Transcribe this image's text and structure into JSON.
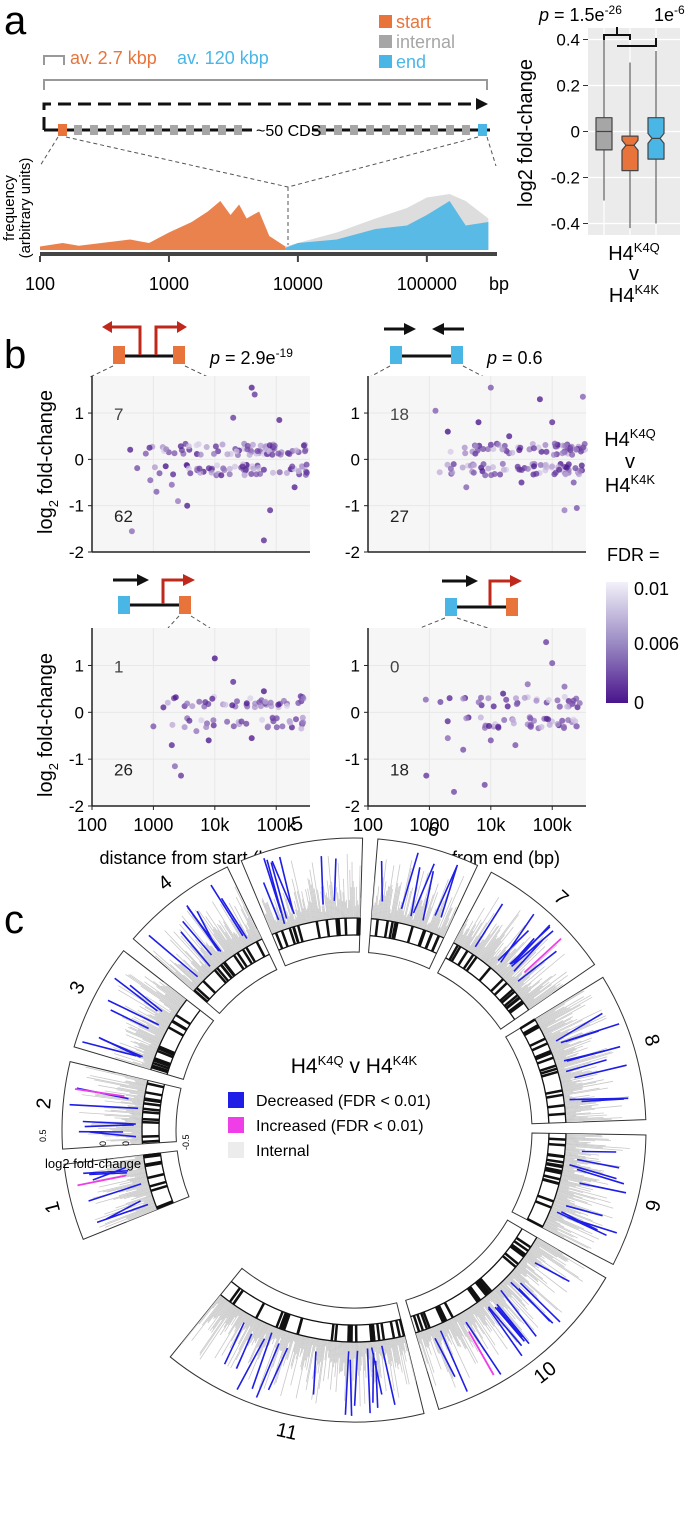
{
  "colors": {
    "start": "#e8743b",
    "internal": "#a6a6a6",
    "end": "#4ab6e6",
    "red": "#c0281c",
    "decreased": "#1f1ee6",
    "increased": "#ef3ee8",
    "fdr_low": "#4a148c",
    "fdr_high": "#f3f1f9"
  },
  "panels": {
    "a": "a",
    "b": "b",
    "c": "c"
  },
  "panel_a": {
    "legend": [
      "start",
      "internal",
      "end"
    ],
    "avg_start": "av. 2.7 kbp",
    "avg_end": "av. 120 kbp",
    "cds_label": "~50 CDS",
    "ylabel_1": "frequency",
    "ylabel_2": "(arbitrary units)",
    "x_ticks": [
      "100",
      "1000",
      "10000",
      "100000"
    ],
    "x_unit": "bp",
    "box": {
      "p1_prefix": "p = 1.5e",
      "p1_exp": "-26",
      "p2_prefix": "1e",
      "p2_exp": "-6",
      "ylabel": "log2 fold-change",
      "y_ticks": [
        "0.4",
        "0.2",
        "0",
        "-0.2",
        "-0.4"
      ],
      "x_line1": "H4",
      "x_line1_sup": "K4Q",
      "x_line2": "v",
      "x_line3": "H4",
      "x_line3_sup": "K4K"
    }
  },
  "panel_b": {
    "ylabel": "log2 fold-change",
    "comparison_line1": "H4",
    "comparison_line1_sup": "K4Q",
    "comparison_line2": "v",
    "comparison_line3": "H4",
    "comparison_line3_sup": "K4K",
    "p_top_left": "p = 2.9e",
    "p_top_left_exp": "-19",
    "p_top_right": "p = 0.6",
    "y_ticks": [
      "1",
      "0",
      "-1",
      "-2"
    ],
    "x_ticks": [
      "100",
      "1000",
      "10k",
      "100k"
    ],
    "xlabel_left": "distance from start (bp)",
    "xlabel_right": "distance from end (bp)",
    "counts": {
      "tl_up": "7",
      "tl_down": "62",
      "tr_up": "18",
      "tr_down": "27",
      "bl_up": "1",
      "bl_down": "26",
      "br_up": "0",
      "br_down": "18"
    },
    "fdr_title": "FDR =",
    "fdr_ticks": [
      "0.01",
      "0.006",
      "0"
    ]
  },
  "panel_c": {
    "title_prefix": "H4",
    "title_sup1": "K4Q",
    "title_mid": " v H4",
    "title_sup2": "K4K",
    "legend": [
      "Decreased (FDR < 0.01)",
      "Increased (FDR < 0.01)",
      "Internal"
    ],
    "axis_label": "log2 fold-change",
    "axis_ticks": [
      "0.5",
      "0",
      "0",
      "-0.5"
    ],
    "chromosomes": [
      "1",
      "2",
      "3",
      "4",
      "5",
      "6",
      "7",
      "8",
      "9",
      "10",
      "11"
    ]
  },
  "chart_data": [
    {
      "type": "area",
      "panel": "a",
      "title": "",
      "xlabel": "bp",
      "ylabel": "frequency (arbitrary units)",
      "x_scale": "log",
      "xlim": [
        100,
        350000
      ],
      "x_ticks": [
        100,
        1000,
        10000,
        100000
      ],
      "series": [
        {
          "name": "start",
          "x": [
            100,
            150,
            200,
            300,
            500,
            700,
            1000,
            1500,
            2000,
            2500,
            3000,
            3500,
            4000,
            5000,
            6000,
            8000
          ],
          "values": [
            0.05,
            0.1,
            0.06,
            0.1,
            0.15,
            0.1,
            0.25,
            0.4,
            0.55,
            0.7,
            0.5,
            0.65,
            0.45,
            0.55,
            0.2,
            0.05
          ]
        },
        {
          "name": "internal",
          "x": [
            8000,
            10000,
            20000,
            40000,
            70000,
            100000,
            150000,
            200000,
            300000
          ],
          "values": [
            0.05,
            0.1,
            0.25,
            0.45,
            0.6,
            0.75,
            0.8,
            0.7,
            0.45
          ]
        },
        {
          "name": "end",
          "x": [
            8000,
            10000,
            20000,
            40000,
            70000,
            100000,
            150000,
            200000,
            300000
          ],
          "values": [
            0.03,
            0.1,
            0.15,
            0.3,
            0.35,
            0.5,
            0.7,
            0.35,
            0.4
          ]
        }
      ]
    },
    {
      "type": "box",
      "panel": "a",
      "title": "",
      "ylabel": "log2 fold-change",
      "ylim": [
        -0.45,
        0.45
      ],
      "categories": [
        "start",
        "internal",
        "end"
      ],
      "boxes": [
        {
          "name": "internal",
          "q1": -0.08,
          "median": 0.0,
          "q3": 0.06,
          "whisker_low": -0.3,
          "whisker_high": 0.4
        },
        {
          "name": "start",
          "q1": -0.17,
          "median": -0.06,
          "q3": -0.02,
          "whisker_low": -0.42,
          "whisker_high": 0.3
        },
        {
          "name": "end",
          "q1": -0.12,
          "median": -0.03,
          "q3": 0.06,
          "whisker_low": -0.4,
          "whisker_high": 0.35
        }
      ]
    },
    {
      "type": "scatter",
      "panel": "b",
      "facets": [
        {
          "name": "start-divergent",
          "xlabel": "",
          "p": "2.9e-19",
          "up": 7,
          "down": 62,
          "x_range_log10": [
            2.6,
            5.55
          ],
          "points": [
            [
              2.65,
              -1.55
            ],
            [
              2.95,
              -0.45
            ],
            [
              3.05,
              -0.7
            ],
            [
              3.1,
              -0.3
            ],
            [
              3.2,
              -0.15
            ],
            [
              3.3,
              -0.55
            ],
            [
              3.4,
              -0.9
            ],
            [
              3.55,
              -1.0
            ],
            [
              3.6,
              -0.3
            ],
            [
              3.75,
              -0.2
            ],
            [
              4.3,
              0.9
            ],
            [
              4.6,
              1.55
            ],
            [
              4.65,
              1.4
            ],
            [
              4.8,
              -1.75
            ],
            [
              4.9,
              -1.1
            ],
            [
              5.05,
              0.85
            ],
            [
              5.3,
              -0.6
            ],
            [
              5.45,
              0.3
            ]
          ]
        },
        {
          "name": "end-convergent",
          "xlabel": "",
          "p": "0.6",
          "up": 18,
          "down": 27,
          "x_range_log10": [
            3.0,
            5.55
          ],
          "points": [
            [
              3.1,
              1.05
            ],
            [
              3.3,
              0.6
            ],
            [
              3.35,
              -0.2
            ],
            [
              3.6,
              -0.6
            ],
            [
              3.8,
              0.8
            ],
            [
              4.0,
              1.55
            ],
            [
              4.3,
              0.5
            ],
            [
              4.5,
              -0.5
            ],
            [
              4.8,
              1.3
            ],
            [
              5.0,
              0.8
            ],
            [
              5.2,
              -1.1
            ],
            [
              5.35,
              -0.5
            ],
            [
              5.4,
              -1.05
            ],
            [
              5.5,
              1.35
            ]
          ]
        },
        {
          "name": "start-tandem",
          "xlabel": "distance from start (bp)",
          "up": 1,
          "down": 26,
          "x_range_log10": [
            3.0,
            5.45
          ],
          "points": [
            [
              3.0,
              -0.3
            ],
            [
              3.3,
              -0.7
            ],
            [
              3.35,
              -1.15
            ],
            [
              3.45,
              -1.35
            ],
            [
              3.7,
              -0.4
            ],
            [
              3.9,
              -0.6
            ],
            [
              4.0,
              1.15
            ],
            [
              4.2,
              -0.2
            ],
            [
              4.3,
              0.65
            ],
            [
              4.6,
              -0.55
            ],
            [
              4.8,
              0.45
            ],
            [
              5.1,
              -0.3
            ]
          ]
        },
        {
          "name": "end-tandem",
          "xlabel": "distance from end (bp)",
          "up": 0,
          "down": 18,
          "x_range_log10": [
            2.9,
            5.45
          ],
          "points": [
            [
              2.95,
              -1.35
            ],
            [
              3.3,
              -0.55
            ],
            [
              3.4,
              -1.7
            ],
            [
              3.55,
              -0.8
            ],
            [
              3.9,
              -1.55
            ],
            [
              4.0,
              -0.6
            ],
            [
              4.2,
              0.4
            ],
            [
              4.4,
              -0.7
            ],
            [
              4.6,
              0.6
            ],
            [
              4.9,
              1.5
            ],
            [
              5.0,
              1.05
            ],
            [
              5.2,
              0.55
            ],
            [
              5.4,
              -0.3
            ]
          ]
        }
      ],
      "ylim": [
        -2,
        1.8
      ],
      "x_scale": "log",
      "x_ticks": [
        "100",
        "1000",
        "10k",
        "100k"
      ],
      "color_scale": {
        "name": "FDR",
        "min": 0,
        "max": 0.01,
        "ticks": [
          0.01,
          0.006,
          0
        ]
      }
    },
    {
      "type": "circular",
      "panel": "c",
      "title": "H4K4Q v H4K4K",
      "chromosomes": [
        "1",
        "2",
        "3",
        "4",
        "5",
        "6",
        "7",
        "8",
        "9",
        "10",
        "11"
      ],
      "legend": [
        "Decreased (FDR < 0.01)",
        "Increased (FDR < 0.01)",
        "Internal"
      ],
      "axis": {
        "label": "log2 fold-change",
        "range": [
          -0.5,
          0.5
        ]
      }
    }
  ]
}
